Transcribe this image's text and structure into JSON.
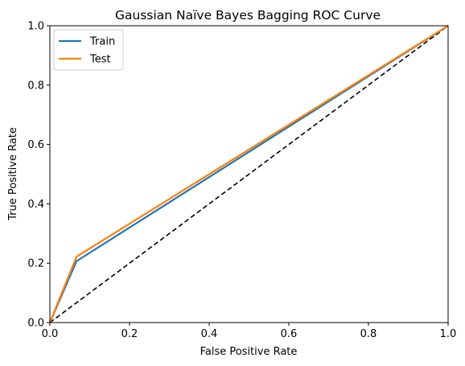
{
  "chart_data": {
    "type": "line",
    "title": "Gaussian Naïve Bayes Bagging ROC Curve",
    "xlabel": "False Positive Rate",
    "ylabel": "True Positive Rate",
    "xlim": [
      0.0,
      1.0
    ],
    "ylim": [
      0.0,
      1.0
    ],
    "xticks": [
      "0.0",
      "0.2",
      "0.4",
      "0.6",
      "0.8",
      "1.0"
    ],
    "yticks": [
      "0.0",
      "0.2",
      "0.4",
      "0.6",
      "0.8",
      "1.0"
    ],
    "grid": false,
    "legend_position": "top-left",
    "series": [
      {
        "name": "Train",
        "color": "#1f77b4",
        "x": [
          0.0,
          0.067,
          1.0
        ],
        "y": [
          0.0,
          0.207,
          1.0
        ]
      },
      {
        "name": "Test",
        "color": "#ff7f0e",
        "x": [
          0.0,
          0.067,
          1.0
        ],
        "y": [
          0.0,
          0.222,
          1.0
        ]
      }
    ],
    "reference_line": {
      "style": "dashed",
      "color": "#000000",
      "x": [
        0.0,
        1.0
      ],
      "y": [
        0.0,
        1.0
      ]
    }
  }
}
